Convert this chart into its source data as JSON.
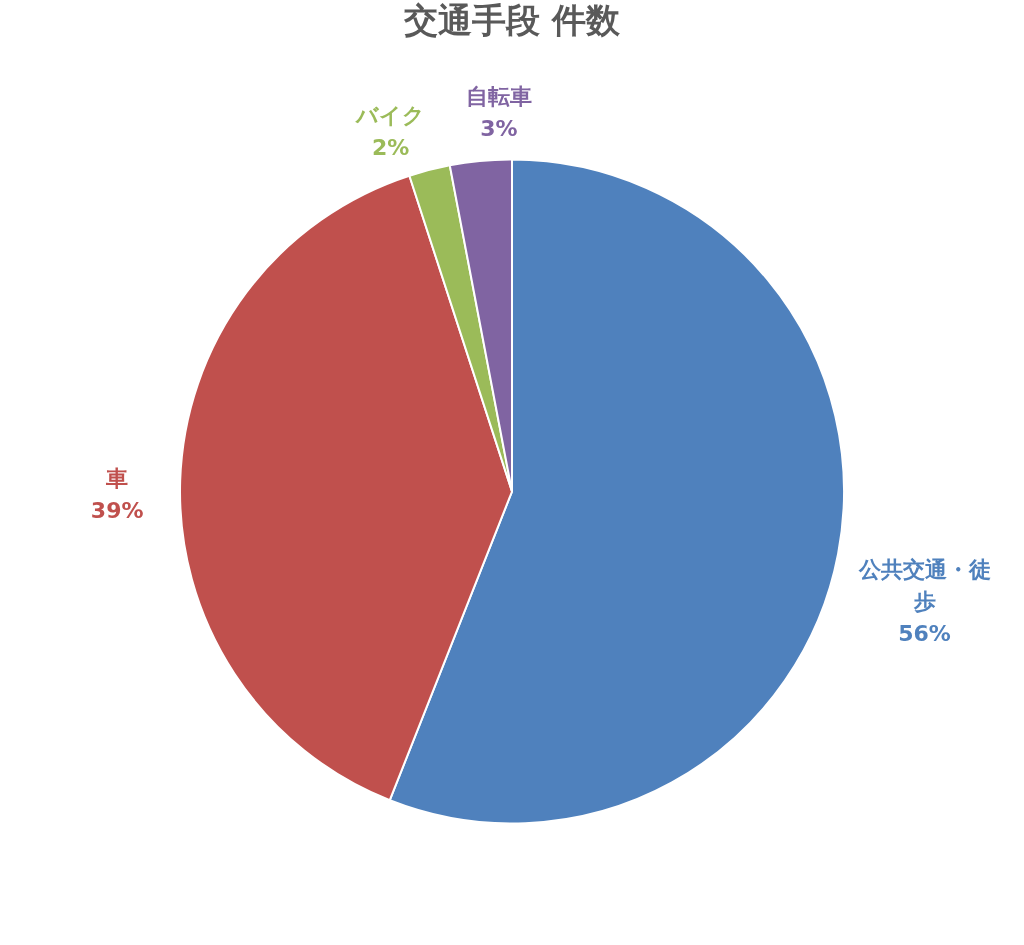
{
  "chart_data": {
    "type": "pie",
    "title": "交通手段 件数",
    "categories": [
      "公共交通・徒歩",
      "車",
      "バイク",
      "自転車"
    ],
    "values": [
      56,
      39,
      2,
      3
    ],
    "value_labels": [
      "56%",
      "39%",
      "2%",
      "3%"
    ],
    "colors": [
      "#4f81bd",
      "#c0504d",
      "#9bbb59",
      "#8064a2"
    ],
    "legend": false
  }
}
